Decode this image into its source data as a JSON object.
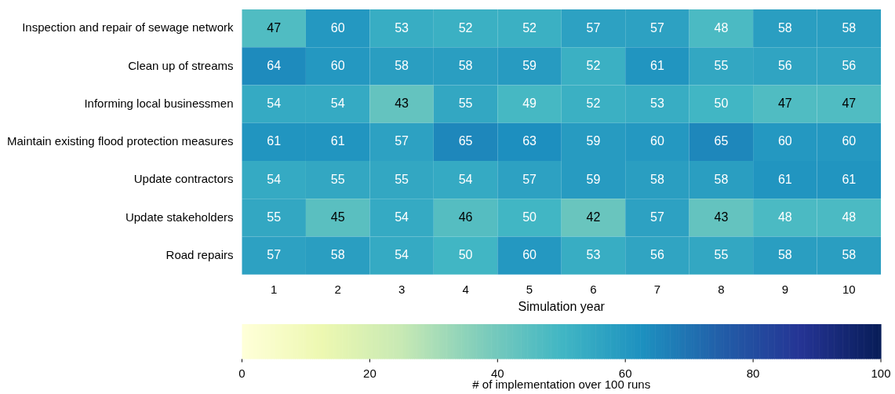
{
  "chart_data": {
    "type": "heatmap",
    "xlabel": "Simulation year",
    "clabel": "# of implementation over 100 runs",
    "categories": [
      "1",
      "2",
      "3",
      "4",
      "5",
      "6",
      "7",
      "8",
      "9",
      "10"
    ],
    "y_categories": [
      "Inspection and repair of sewage network",
      "Clean up of streams",
      "Informing local businessmen",
      "Maintain existing flood protection measures",
      "Update contractors",
      "Update stakeholders",
      "Road repairs"
    ],
    "cells": [
      [
        47,
        60,
        53,
        52,
        52,
        57,
        57,
        48,
        58,
        58
      ],
      [
        64,
        60,
        58,
        58,
        59,
        52,
        61,
        55,
        56,
        56
      ],
      [
        54,
        54,
        43,
        55,
        49,
        52,
        53,
        50,
        47,
        47
      ],
      [
        61,
        61,
        57,
        65,
        63,
        59,
        60,
        65,
        60,
        60
      ],
      [
        54,
        55,
        55,
        54,
        57,
        59,
        58,
        58,
        61,
        61
      ],
      [
        55,
        45,
        54,
        46,
        50,
        42,
        57,
        43,
        48,
        48
      ],
      [
        57,
        58,
        54,
        50,
        60,
        53,
        56,
        55,
        58,
        58
      ]
    ],
    "clim": [
      0,
      100
    ],
    "cticks": [
      0,
      20,
      40,
      60,
      80,
      100
    ],
    "data_labels": true
  }
}
